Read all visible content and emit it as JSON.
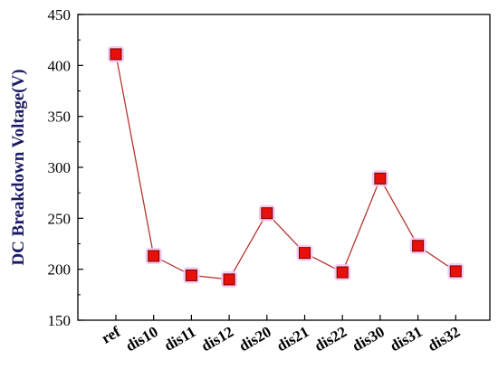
{
  "chart_data": {
    "type": "line",
    "title": "",
    "xlabel": "",
    "ylabel": "DC Breakdown Voltage(V)",
    "ylim": [
      150,
      450
    ],
    "yticks": [
      150,
      200,
      250,
      300,
      350,
      400,
      450
    ],
    "categories": [
      "ref",
      "dis10",
      "dis11",
      "dis12",
      "dis20",
      "dis21",
      "dis22",
      "dis30",
      "dis31",
      "dis32"
    ],
    "series": [
      {
        "values": [
          411,
          213,
          194,
          190,
          255,
          216,
          197,
          289,
          223,
          198
        ],
        "line_color": "#b5352f",
        "marker_color": "#e8100a",
        "marker_edge_color": "#7a0000",
        "marker_halo_color": "#f2c6ee",
        "marker": "square"
      }
    ],
    "grid": false,
    "legend": "none"
  }
}
